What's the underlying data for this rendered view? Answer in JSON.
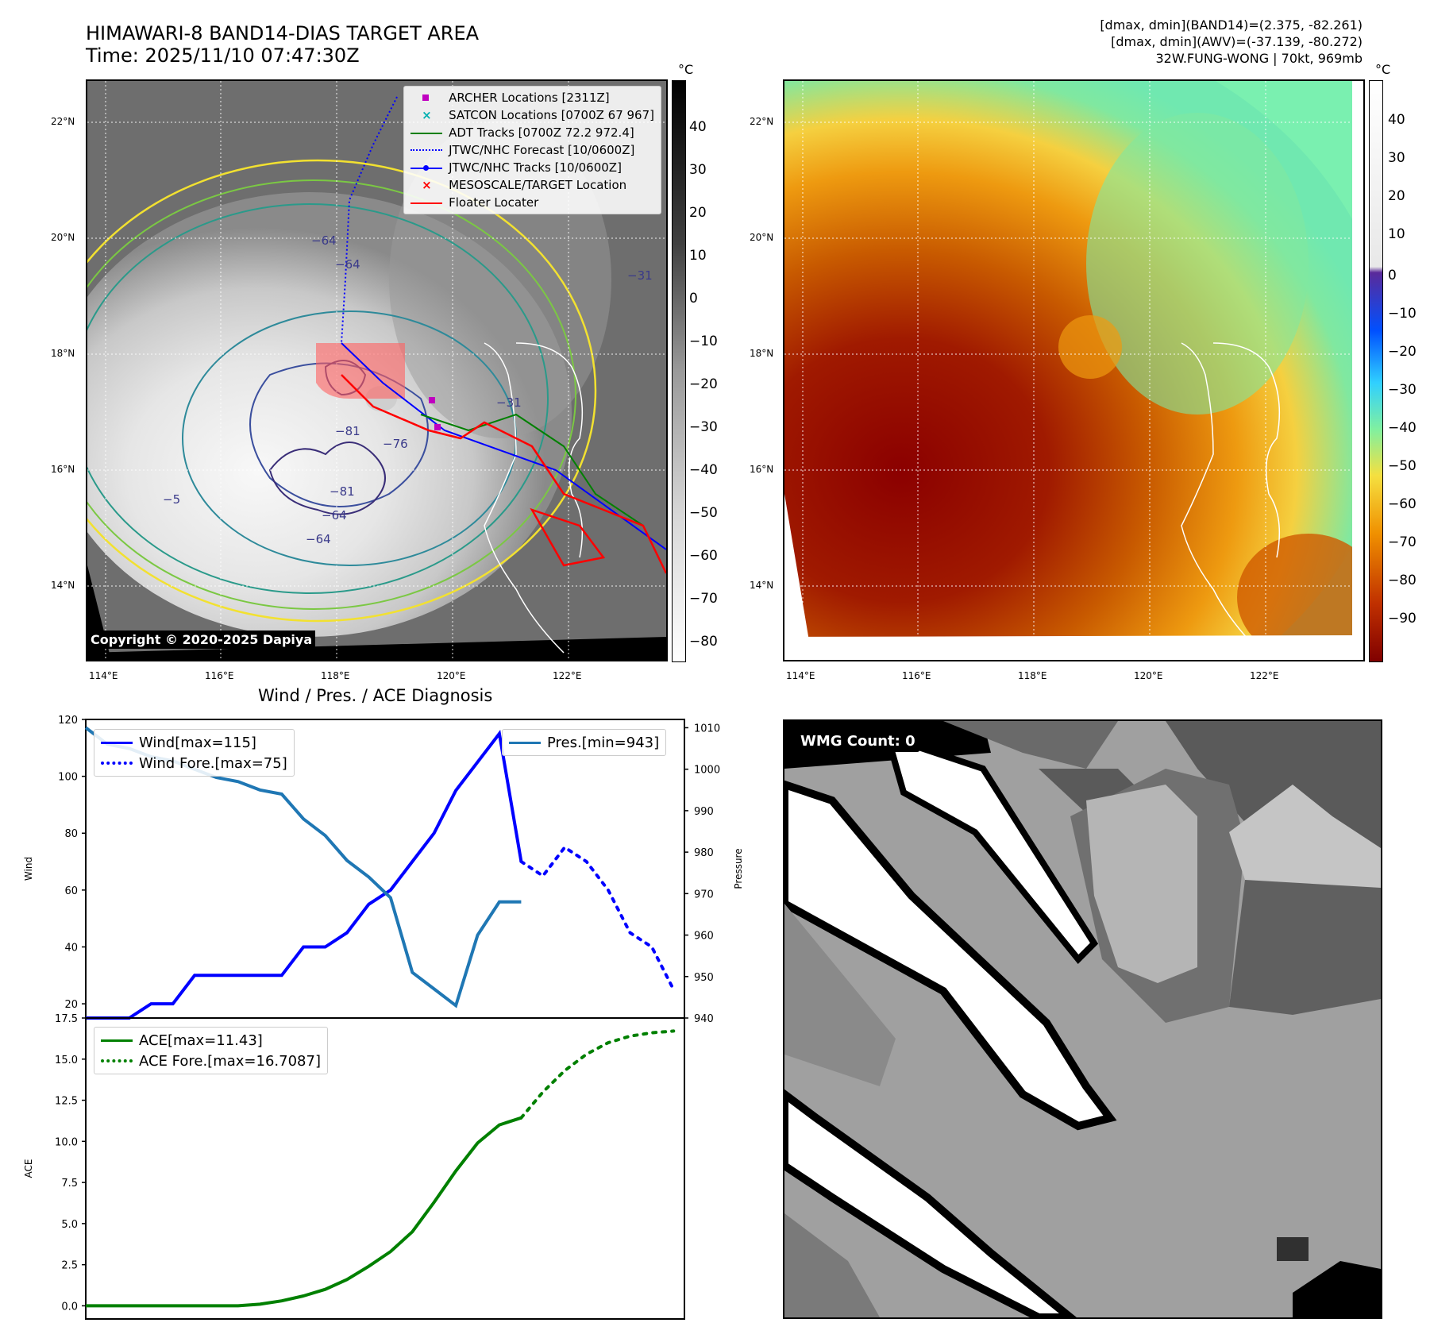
{
  "header": {
    "title_line1": "HIMAWARI-8 BAND14-DIAS TARGET AREA",
    "title_line2": "Time: 2025/11/10 07:47:30Z",
    "info_line1": "[dmax, dmin](BAND14)=(2.375, -82.261)",
    "info_line2": "[dmax, dmin](AWV)=(-37.139, -80.272)",
    "info_line3": "32W.FUNG-WONG | 70kt, 969mb"
  },
  "ir_panel": {
    "lat_labels": [
      "22°N",
      "20°N",
      "18°N",
      "16°N",
      "14°N"
    ],
    "lon_labels": [
      "114°E",
      "116°E",
      "118°E",
      "120°E",
      "122°E"
    ],
    "colorbar_unit": "°C",
    "colorbar_ticks": [
      "40",
      "30",
      "20",
      "10",
      "0",
      "−10",
      "−20",
      "−30",
      "−40",
      "−50",
      "−60",
      "−70",
      "−80"
    ],
    "copyright": "Copyright © 2020-2025 Dapiya",
    "contour_labels": [
      "−64",
      "−64",
      "−81",
      "−76",
      "−81",
      "−64",
      "−5",
      "−64",
      "−31",
      "−31"
    ],
    "legend": [
      {
        "label": "ARCHER Locations [2311Z]",
        "color": "#c000c0",
        "marker": "square"
      },
      {
        "label": "SATCON Locations [0700Z 67 967]",
        "color": "#00b0b0",
        "marker": "x"
      },
      {
        "label": "ADT Tracks [0700Z 72.2 972.4]",
        "color": "#008000",
        "marker": "line"
      },
      {
        "label": "JTWC/NHC Forecast [10/0600Z]",
        "color": "#0000ff",
        "marker": "dotted"
      },
      {
        "label": "JTWC/NHC Tracks [10/0600Z]",
        "color": "#0000ff",
        "marker": "line-dot"
      },
      {
        "label": "MESOSCALE/TARGET Location",
        "color": "#ff0000",
        "marker": "x"
      },
      {
        "label": "Floater Locater",
        "color": "#ff0000",
        "marker": "line"
      }
    ]
  },
  "awv_panel": {
    "lat_labels": [
      "22°N",
      "20°N",
      "18°N",
      "16°N",
      "14°N"
    ],
    "lon_labels": [
      "114°E",
      "116°E",
      "118°E",
      "120°E",
      "122°E"
    ],
    "colorbar_unit": "°C",
    "colorbar_ticks": [
      "40",
      "30",
      "20",
      "10",
      "0",
      "−10",
      "−20",
      "−30",
      "−40",
      "−50",
      "−60",
      "−70",
      "−80",
      "−90"
    ]
  },
  "wmg_panel": {
    "label": "WMG Count: 0"
  },
  "diag_title": "Wind / Pres. / ACE Diagnosis",
  "chart_data": [
    {
      "type": "line",
      "title": "Wind / Pres. / ACE Diagnosis",
      "ylabel": "Wind",
      "ylim": [
        15,
        120
      ],
      "yticks": [
        20,
        40,
        60,
        80,
        100,
        120
      ],
      "y2label": "Pressure",
      "y2lim": [
        940,
        1012
      ],
      "y2ticks": [
        940,
        950,
        960,
        970,
        980,
        990,
        1000,
        1010
      ],
      "xlim": [
        0,
        55
      ],
      "series": [
        {
          "name": "Wind[max=115]",
          "axis": "left",
          "color": "#0000ff",
          "style": "solid",
          "x": [
            0,
            2,
            4,
            6,
            8,
            10,
            12,
            14,
            16,
            18,
            20,
            22,
            24,
            26,
            28,
            30,
            32,
            34,
            36,
            38,
            40
          ],
          "y": [
            15,
            15,
            15,
            20,
            20,
            30,
            30,
            30,
            30,
            30,
            40,
            40,
            45,
            55,
            60,
            70,
            80,
            95,
            105,
            115,
            70
          ]
        },
        {
          "name": "Wind Fore.[max=75]",
          "axis": "left",
          "color": "#0000ff",
          "style": "dotted",
          "x": [
            40,
            42,
            44,
            46,
            48,
            50,
            52,
            54
          ],
          "y": [
            70,
            65,
            75,
            70,
            60,
            45,
            40,
            25
          ]
        },
        {
          "name": "Pres.[min=943]",
          "axis": "right",
          "color": "#1f77b4",
          "style": "solid",
          "x": [
            0,
            2,
            4,
            6,
            8,
            10,
            12,
            14,
            16,
            18,
            20,
            22,
            24,
            26,
            28,
            30,
            32,
            34,
            36,
            38,
            40
          ],
          "y": [
            1010,
            1006,
            1005,
            1003,
            1002,
            1000,
            998,
            997,
            995,
            994,
            988,
            984,
            978,
            974,
            969,
            951,
            947,
            943,
            960,
            968,
            968
          ]
        }
      ],
      "legend_left": [
        "Wind[max=115]",
        "Wind Fore.[max=75]"
      ],
      "legend_right": [
        "Pres.[min=943]"
      ]
    },
    {
      "type": "line",
      "ylabel": "ACE",
      "ylim": [
        -0.8,
        17.5
      ],
      "yticks": [
        "0.0",
        "2.5",
        "5.0",
        "7.5",
        "10.0",
        "12.5",
        "15.0",
        "17.5"
      ],
      "xlim": [
        0,
        55
      ],
      "series": [
        {
          "name": "ACE[max=11.43]",
          "color": "#008000",
          "style": "solid",
          "x": [
            0,
            4,
            8,
            12,
            14,
            16,
            18,
            20,
            22,
            24,
            26,
            28,
            30,
            32,
            34,
            36,
            38,
            40
          ],
          "y": [
            0,
            0,
            0,
            0,
            0,
            0.1,
            0.3,
            0.6,
            1.0,
            1.6,
            2.4,
            3.3,
            4.5,
            6.3,
            8.2,
            9.9,
            11.0,
            11.43
          ]
        },
        {
          "name": "ACE Fore.[max=16.7087]",
          "color": "#008000",
          "style": "dotted",
          "x": [
            40,
            42,
            44,
            46,
            48,
            50,
            52,
            54
          ],
          "y": [
            11.43,
            13.0,
            14.3,
            15.3,
            16.0,
            16.4,
            16.6,
            16.71
          ]
        }
      ]
    }
  ]
}
